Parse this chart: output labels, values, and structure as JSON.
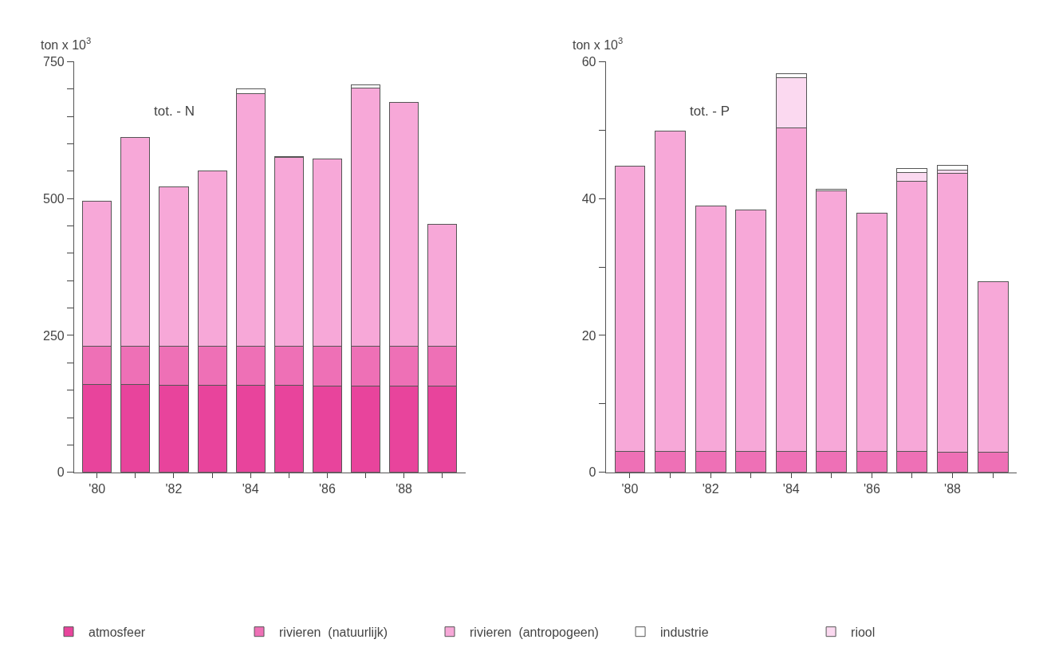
{
  "chart_data": [
    {
      "type": "bar",
      "title": "tot. - N",
      "ylabel": "ton x 10$^{3}$",
      "stacked": true,
      "legend": "bottom",
      "categories": [
        "'80",
        null,
        "'82",
        null,
        "'84",
        null,
        "'86",
        null,
        "'88",
        null
      ],
      "ylim": [
        0,
        750
      ],
      "yticks": [
        0,
        {
          "value": 50,
          "label": null
        },
        {
          "value": 100,
          "label": null
        },
        {
          "value": 150,
          "label": null
        },
        {
          "value": 200,
          "label": null
        },
        250,
        {
          "value": 300,
          "label": null
        },
        {
          "value": 350,
          "label": null
        },
        {
          "value": 400,
          "label": null
        },
        {
          "value": 450,
          "label": null
        },
        500,
        {
          "value": 550,
          "label": null
        },
        {
          "value": 600,
          "label": null
        },
        {
          "value": 650,
          "label": null
        },
        {
          "value": 700,
          "label": null
        },
        750
      ],
      "series": [
        {
          "name": "atmosfeer",
          "color": "#e8449c",
          "values": [
            160,
            160,
            159,
            159,
            159,
            159,
            158,
            158,
            158,
            158
          ]
        },
        {
          "name": "rivieren  (natuurlijk)",
          "color": "#ee70b6",
          "values": [
            70,
            70,
            71,
            71,
            71,
            71,
            72,
            72,
            72,
            72
          ]
        },
        {
          "name": "rivieren  (antropogeen)",
          "color": "#f7a8d8",
          "values": [
            265,
            381,
            292,
            321,
            462,
            345,
            343,
            472,
            445,
            223
          ]
        },
        {
          "name": "industrie",
          "color": "#ffffff",
          "values": [
            null,
            null,
            null,
            null,
            8,
            2,
            null,
            6,
            1,
            null
          ]
        }
      ]
    },
    {
      "type": "bar",
      "title": "tot. - P",
      "ylabel": "ton x 10$^{3}$",
      "stacked": true,
      "legend": "bottom",
      "categories": [
        "'80",
        null,
        "'82",
        null,
        "'84",
        null,
        "'86",
        null,
        "'88",
        null
      ],
      "ylim": [
        0,
        60
      ],
      "yticks": [
        0,
        {
          "value": 10,
          "label": null
        },
        20,
        {
          "value": 30,
          "label": null
        },
        40,
        {
          "value": 50,
          "label": null
        },
        60
      ],
      "series": [
        {
          "name": "rivieren  (natuurlijk)",
          "color": "#ee70b6",
          "values": [
            3,
            3,
            3,
            3,
            3,
            3,
            3,
            3,
            2.9,
            2.9
          ]
        },
        {
          "name": "rivieren  (antropogeen)",
          "color": "#f7a8d8",
          "values": [
            41.8,
            46.9,
            35.9,
            35.3,
            47.3,
            38.1,
            34.9,
            39.5,
            40.8,
            24.9
          ]
        },
        {
          "name": "riool",
          "color": "#fbd9f0",
          "values": [
            null,
            null,
            null,
            null,
            7.4,
            null,
            null,
            1.3,
            0.5,
            null
          ]
        },
        {
          "name": "industrie",
          "color": "#ffffff",
          "values": [
            null,
            null,
            null,
            null,
            0.5,
            0.3,
            null,
            0.6,
            0.7,
            null
          ]
        }
      ]
    }
  ]
}
